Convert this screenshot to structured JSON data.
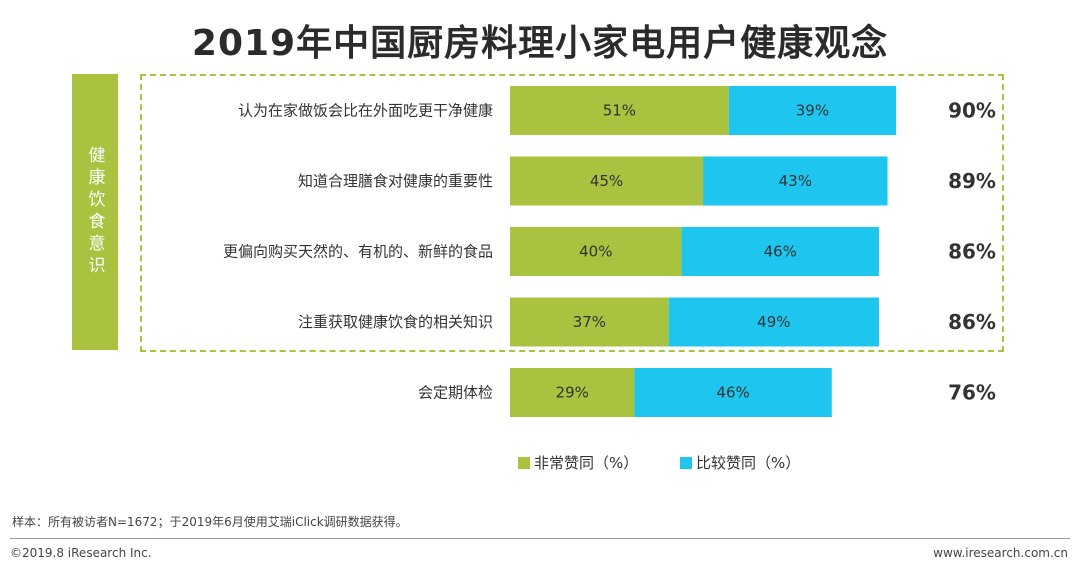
{
  "title": "2019年中国厨房料理小家电用户健康观念",
  "side_label": "健康饮食意识",
  "colors": {
    "strong": "#a9c23f",
    "agree": "#1ec6ef",
    "accent": "#a9c23f"
  },
  "chart_data": {
    "type": "bar",
    "orientation": "horizontal",
    "stacked": true,
    "categories": [
      "认为在家做饭会比在外面吃更干净健康",
      "知道合理膳食对健康的重要性",
      "更偏向购买天然的、有机的、新鲜的食品",
      "注重获取健康饮食的相关知识",
      "会定期体检"
    ],
    "series": [
      {
        "name": "非常赞同（%）",
        "values": [
          51,
          45,
          40,
          37,
          29
        ]
      },
      {
        "name": "比较赞同（%）",
        "values": [
          39,
          43,
          46,
          49,
          46
        ]
      }
    ],
    "value_labels": [
      [
        "51%",
        "45%",
        "40%",
        "37%",
        "29%"
      ],
      [
        "39%",
        "43%",
        "46%",
        "49%",
        "46%"
      ]
    ],
    "totals": [
      "90%",
      "89%",
      "86%",
      "86%",
      "76%"
    ],
    "legend": [
      "非常赞同（%）",
      "比较赞同（%）"
    ],
    "legend_position": "bottom",
    "xlim": [
      0,
      100
    ],
    "grid": false
  },
  "footer": {
    "note": "样本：所有被访者N=1672；于2019年6月使用艾瑞iClick调研数据获得。",
    "copyright": "©2019.8 iResearch Inc.",
    "website": "www.iresearch.com.cn"
  }
}
